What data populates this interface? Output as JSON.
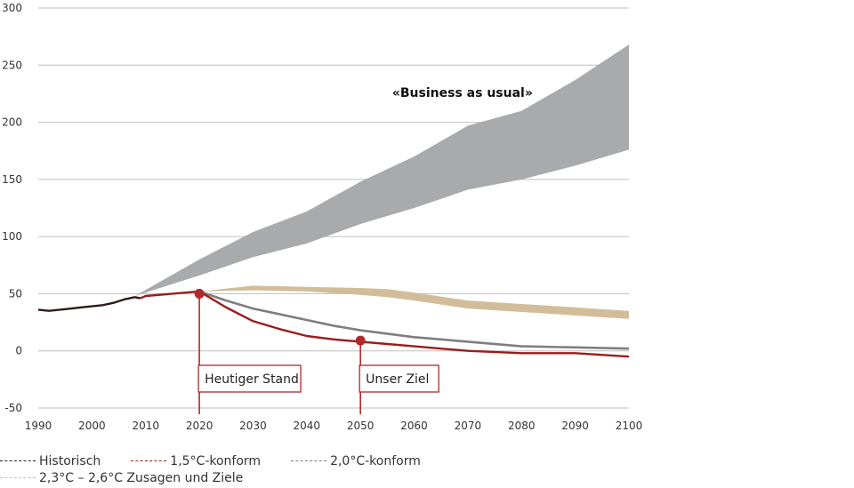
{
  "chart_data": {
    "type": "line",
    "title": "",
    "xlabel": "",
    "ylabel": "",
    "xlim": [
      1990,
      2100
    ],
    "ylim": [
      -50,
      300
    ],
    "x_ticks": [
      1990,
      2000,
      2010,
      2020,
      2030,
      2040,
      2050,
      2060,
      2070,
      2080,
      2090,
      2100
    ],
    "y_ticks": [
      -50,
      0,
      50,
      100,
      150,
      200,
      250,
      300
    ],
    "colors": {
      "historisch": "#2b1d1a",
      "c15": "#9b1c1c",
      "c20": "#7f7f7f",
      "c23": "#d1bd99",
      "bau": "#a9aaac",
      "grid": "#bfbfbf",
      "marker": "#b02a2a"
    },
    "series": [
      {
        "name": "Historisch",
        "x": [
          1990,
          1992,
          1994,
          1996,
          1998,
          2000,
          2002,
          2004,
          2006,
          2008,
          2009
        ],
        "y": [
          36,
          35,
          36,
          37,
          38,
          39,
          40,
          42,
          45,
          47,
          46
        ]
      },
      {
        "name": "1,5°C-konform",
        "x": [
          2009,
          2010,
          2015,
          2020,
          2025,
          2030,
          2035,
          2040,
          2045,
          2050,
          2055,
          2060,
          2070,
          2080,
          2090,
          2100
        ],
        "y": [
          46,
          48,
          50,
          52,
          38,
          26,
          19,
          13,
          10,
          8,
          6,
          4,
          0,
          -2,
          -2,
          -5
        ]
      },
      {
        "name": "2,0°C-konform",
        "x": [
          2020,
          2025,
          2030,
          2035,
          2040,
          2045,
          2050,
          2055,
          2060,
          2070,
          2080,
          2090,
          2100
        ],
        "y": [
          52,
          44,
          37,
          32,
          27,
          22,
          18,
          15,
          12,
          8,
          4,
          3,
          2
        ]
      },
      {
        "name": "2,3°C – 2,6°C Zusagen und Ziele",
        "x": [
          2020,
          2030,
          2040,
          2050,
          2055,
          2060,
          2070,
          2080,
          2090,
          2100
        ],
        "upper": [
          52,
          57,
          56,
          55,
          54,
          51,
          44,
          41,
          38,
          35
        ],
        "lower": [
          52,
          53,
          52,
          49,
          47,
          44,
          37,
          34,
          31,
          28
        ]
      },
      {
        "name": "Business as usual",
        "x": [
          2008,
          2020,
          2030,
          2040,
          2050,
          2060,
          2070,
          2080,
          2090,
          2100
        ],
        "upper": [
          48,
          80,
          104,
          122,
          148,
          170,
          197,
          210,
          237,
          268
        ],
        "lower": [
          48,
          66,
          82,
          94,
          111,
          125,
          141,
          150,
          162,
          176
        ]
      }
    ],
    "annotations": [
      {
        "label": "«Business as usual»",
        "x": 2069,
        "y": 226
      },
      {
        "label": "Heutiger Stand",
        "x": 2020,
        "y": 50
      },
      {
        "label": "Unser Ziel",
        "x": 2050,
        "y": 9
      }
    ],
    "legend": [
      "Historisch",
      "1,5°C-konform",
      "2,0°C-konform",
      "2,3°C – 2,6°C Zusagen und Ziele"
    ],
    "legend_position": "bottom-left"
  }
}
